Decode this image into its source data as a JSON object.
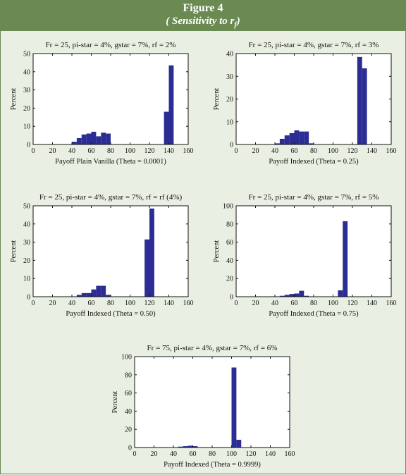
{
  "figure": {
    "title": "Figure 4",
    "subtitle_prefix": "( Sensitivity to r",
    "subtitle_sub": "f",
    "subtitle_suffix": ")"
  },
  "chart_data": [
    {
      "type": "bar",
      "title": "Fr = 25, pi-star = 4%, gstar = 7%, rf = 2%",
      "xlabel": "Payoff Plain Vanilla (Theta = 0.0001)",
      "ylabel": "Percent",
      "xlim": [
        0,
        160
      ],
      "ylim": [
        0,
        50
      ],
      "xticks": [
        0,
        20,
        40,
        60,
        80,
        100,
        120,
        140,
        160
      ],
      "yticks": [
        0,
        10,
        20,
        30,
        40,
        50
      ],
      "bin_width": 5,
      "bars": [
        {
          "x": 40,
          "value": 1.5
        },
        {
          "x": 45,
          "value": 3.5
        },
        {
          "x": 50,
          "value": 5.5
        },
        {
          "x": 55,
          "value": 6
        },
        {
          "x": 60,
          "value": 7
        },
        {
          "x": 65,
          "value": 4.5
        },
        {
          "x": 70,
          "value": 6.5
        },
        {
          "x": 75,
          "value": 6
        },
        {
          "x": 135,
          "value": 18
        },
        {
          "x": 140,
          "value": 43.5
        }
      ],
      "color": "#2b2d94"
    },
    {
      "type": "bar",
      "title": "Fr = 25, pi-star = 4%, gstar = 7%, rf = 3%",
      "xlabel": "Payoff Indexed (Theta = 0.25)",
      "ylabel": "Percent",
      "xlim": [
        0,
        160
      ],
      "ylim": [
        0,
        40
      ],
      "xticks": [
        0,
        20,
        40,
        60,
        80,
        100,
        120,
        140,
        160
      ],
      "yticks": [
        0,
        10,
        20,
        30,
        40
      ],
      "bin_width": 5,
      "bars": [
        {
          "x": 40,
          "value": 0.5
        },
        {
          "x": 45,
          "value": 2.5
        },
        {
          "x": 50,
          "value": 4
        },
        {
          "x": 55,
          "value": 5
        },
        {
          "x": 60,
          "value": 6.2
        },
        {
          "x": 65,
          "value": 5.7
        },
        {
          "x": 70,
          "value": 5.7
        },
        {
          "x": 75,
          "value": 0.5
        },
        {
          "x": 125,
          "value": 38.5
        },
        {
          "x": 130,
          "value": 33.5
        }
      ],
      "color": "#2b2d94"
    },
    {
      "type": "bar",
      "title": "Fr = 25, pi-star = 4%, gstar = 7%, rf = rf (4%)",
      "xlabel": "Payoff Indexed (Theta = 0.50)",
      "ylabel": "Percent",
      "xlim": [
        0,
        160
      ],
      "ylim": [
        0,
        50
      ],
      "xticks": [
        0,
        20,
        40,
        60,
        80,
        100,
        120,
        140,
        160
      ],
      "yticks": [
        0,
        10,
        20,
        30,
        40,
        50
      ],
      "bin_width": 5,
      "bars": [
        {
          "x": 45,
          "value": 1
        },
        {
          "x": 50,
          "value": 2
        },
        {
          "x": 55,
          "value": 2
        },
        {
          "x": 60,
          "value": 4
        },
        {
          "x": 65,
          "value": 6
        },
        {
          "x": 70,
          "value": 6
        },
        {
          "x": 75,
          "value": 1
        },
        {
          "x": 115,
          "value": 31.5
        },
        {
          "x": 120,
          "value": 48.5
        }
      ],
      "color": "#2b2d94"
    },
    {
      "type": "bar",
      "title": "Fr = 25, pi-star = 4%, gstar = 7%, rf = 5%",
      "xlabel": "Payoff Indexed (Theta = 0.75)",
      "ylabel": "Percent",
      "xlim": [
        0,
        160
      ],
      "ylim": [
        0,
        100
      ],
      "xticks": [
        0,
        20,
        40,
        60,
        80,
        100,
        120,
        140,
        160
      ],
      "yticks": [
        0,
        20,
        40,
        60,
        80,
        100
      ],
      "bin_width": 5,
      "bars": [
        {
          "x": 45,
          "value": 1
        },
        {
          "x": 50,
          "value": 2
        },
        {
          "x": 55,
          "value": 3
        },
        {
          "x": 60,
          "value": 3.5
        },
        {
          "x": 65,
          "value": 6.5
        },
        {
          "x": 70,
          "value": 1
        },
        {
          "x": 105,
          "value": 7
        },
        {
          "x": 110,
          "value": 83
        }
      ],
      "color": "#2b2d94"
    },
    {
      "type": "bar",
      "title": "Fr = 75, pi-star = 4%, gstar = 7%, rf = 6%",
      "xlabel": "Payoff Indexed (Theta = 0.9999)",
      "ylabel": "Percent",
      "xlim": [
        0,
        160
      ],
      "ylim": [
        0,
        100
      ],
      "xticks": [
        0,
        20,
        40,
        60,
        80,
        100,
        120,
        140,
        160
      ],
      "yticks": [
        0,
        20,
        40,
        60,
        80,
        100
      ],
      "bin_width": 5,
      "bars": [
        {
          "x": 45,
          "value": 1
        },
        {
          "x": 50,
          "value": 1.5
        },
        {
          "x": 55,
          "value": 2
        },
        {
          "x": 60,
          "value": 1.5
        },
        {
          "x": 100,
          "value": 88
        },
        {
          "x": 105,
          "value": 8.5
        }
      ],
      "color": "#2b2d94"
    }
  ]
}
